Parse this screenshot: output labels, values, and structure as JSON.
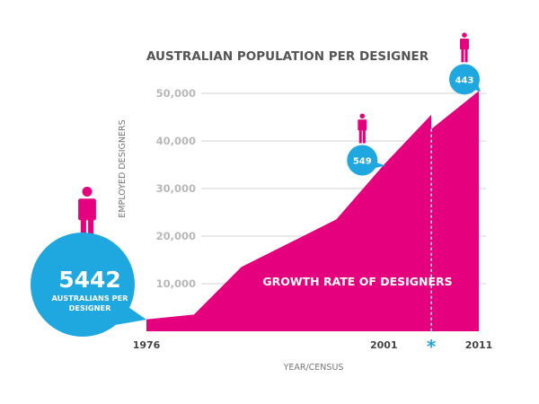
{
  "colors": {
    "area": "#e5007e",
    "bubble": "#1fa8e0",
    "figure": "#e5007e",
    "gridline": "#d3d3d3"
  },
  "chart_data": {
    "type": "area",
    "title": "AUSTRALIAN POPULATION PER DESIGNER",
    "xlabel": "YEAR/CENSUS",
    "ylabel": "EMPLOYED DESIGNERS",
    "ylim": [
      0,
      50000
    ],
    "xlim": [
      1976,
      2011
    ],
    "yticks": [
      10000,
      20000,
      30000,
      40000,
      50000
    ],
    "ytick_labels": [
      "10,000",
      "20,000",
      "30,000",
      "40,000",
      "50,000"
    ],
    "xticks": [
      1976,
      2001,
      2011
    ],
    "xtick_labels": [
      "1976",
      "2001",
      "2011"
    ],
    "grid": true,
    "series": [
      {
        "x": [
          1976,
          1981,
          1986,
          1991,
          1996,
          2001,
          2006,
          2006,
          2011
        ],
        "y": [
          2500,
          3500,
          13500,
          18500,
          23500,
          35000,
          45500,
          42500,
          50500
        ]
      }
    ],
    "annotations": {
      "area_label": "GROWTH RATE OF DESIGNERS",
      "asterisk": "*",
      "bubbles": [
        {
          "x": 1976,
          "y": 2500,
          "value": "5442",
          "subtitle_lines": [
            "AUSTRALIANS PER",
            "DESIGNER"
          ],
          "size": "large"
        },
        {
          "x": 2001,
          "y": 35000,
          "value": "549",
          "size": "small"
        },
        {
          "x": 2011,
          "y": 50500,
          "value": "443",
          "size": "small"
        }
      ]
    }
  }
}
